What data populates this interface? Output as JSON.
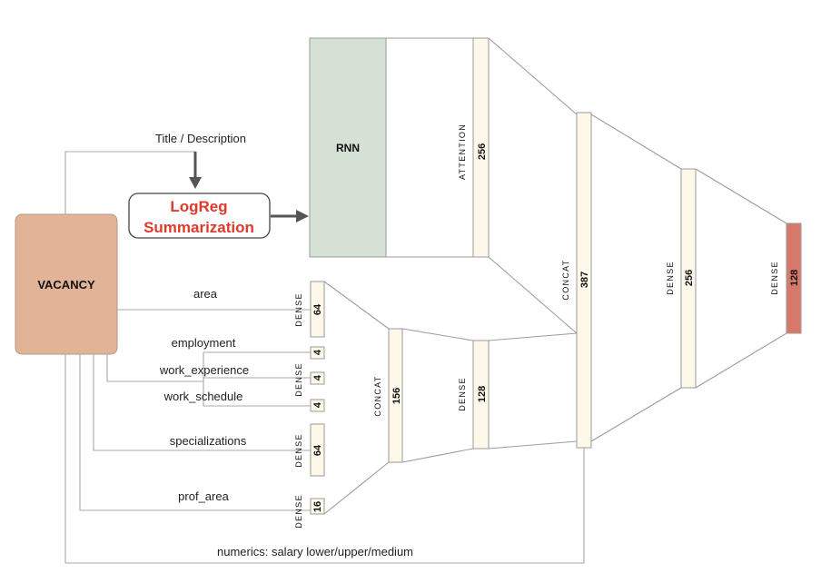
{
  "nodes": {
    "vacancy": "VACANCY",
    "rnn": "RNN",
    "logreg_line1": "LogReg",
    "logreg_line2": "Summarization"
  },
  "edge_labels": {
    "title_description": "Title / Description",
    "area": "area",
    "employment": "employment",
    "work_experience": "work_experience",
    "work_schedule": "work_schedule",
    "specializations": "specializations",
    "prof_area": "prof_area",
    "numerics": "numerics: salary lower/upper/medium"
  },
  "layers": {
    "attention": {
      "name": "ATTENTION",
      "size": "256"
    },
    "dense_area": {
      "name": "DENSE",
      "size": "64"
    },
    "dense_small": {
      "name": "DENSE",
      "size_employment": "4",
      "size_experience": "4",
      "size_schedule": "4"
    },
    "dense_spec": {
      "name": "DENSE",
      "size": "64"
    },
    "dense_prof": {
      "name": "DENSE",
      "size": "16"
    },
    "concat_1": {
      "name": "CONCAT",
      "size": "156"
    },
    "dense_2": {
      "name": "DENSE",
      "size": "128"
    },
    "concat_main": {
      "name": "CONCAT",
      "size": "387"
    },
    "dense_256": {
      "name": "DENSE",
      "size": "256"
    },
    "dense_out": {
      "name": "DENSE",
      "size": "128"
    }
  },
  "colors": {
    "vacancy_fill": "#e2b497",
    "rnn_fill": "#d5e1d5",
    "logreg_text": "#e03a2f",
    "output_fill": "#d6796a",
    "layer_fill": "#fdf8ea"
  }
}
